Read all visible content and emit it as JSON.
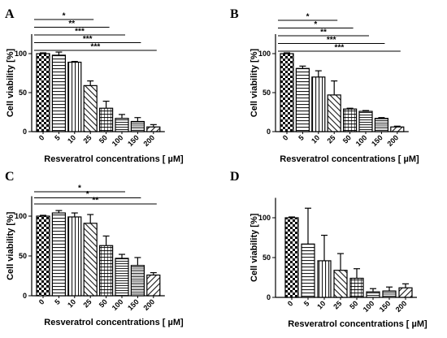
{
  "chart_data": [
    {
      "panel": "A",
      "type": "bar",
      "categories": [
        "0",
        "5",
        "10",
        "25",
        "50",
        "100",
        "150",
        "200"
      ],
      "values": [
        100,
        98,
        89,
        59,
        30,
        17,
        13,
        6
      ],
      "errors": [
        1,
        4,
        1,
        6,
        9,
        5,
        5,
        3
      ],
      "ylabel": "Cell viability [%]",
      "xlabel": "Resveratrol concentrations [ µM]",
      "ylim": [
        0,
        125
      ],
      "yticks": [
        0,
        50,
        100
      ],
      "significance": [
        {
          "label": "*",
          "from": "0",
          "to": "25"
        },
        {
          "label": "**",
          "from": "0",
          "to": "50"
        },
        {
          "label": "***",
          "from": "0",
          "to": "100"
        },
        {
          "label": "***",
          "from": "0",
          "to": "150"
        },
        {
          "label": "***",
          "from": "0",
          "to": "200"
        }
      ]
    },
    {
      "panel": "B",
      "type": "bar",
      "categories": [
        "0",
        "5",
        "10",
        "25",
        "50",
        "100",
        "150",
        "200"
      ],
      "values": [
        100,
        81,
        70,
        47,
        29,
        26,
        17,
        6
      ],
      "errors": [
        1,
        3,
        8,
        18,
        1,
        1,
        1,
        1
      ],
      "ylabel": "Cell viability [%]",
      "xlabel": "Resveratrol concentrations [ µM]",
      "ylim": [
        0,
        125
      ],
      "yticks": [
        0,
        50,
        100
      ],
      "significance": [
        {
          "label": "*",
          "from": "0",
          "to": "25"
        },
        {
          "label": "*",
          "from": "0",
          "to": "50"
        },
        {
          "label": "**",
          "from": "0",
          "to": "100"
        },
        {
          "label": "***",
          "from": "0",
          "to": "150"
        },
        {
          "label": "***",
          "from": "0",
          "to": "200"
        }
      ]
    },
    {
      "panel": "C",
      "type": "bar",
      "categories": [
        "0",
        "5",
        "10",
        "25",
        "50",
        "100",
        "150",
        "200"
      ],
      "values": [
        100,
        104,
        99,
        91,
        63,
        47,
        38,
        26
      ],
      "errors": [
        1,
        3,
        5,
        11,
        12,
        5,
        10,
        3
      ],
      "ylabel": "Cell viability [%]",
      "xlabel": "Resveratrol concentrations [ µM]",
      "ylim": [
        0,
        125
      ],
      "yticks": [
        0,
        50,
        100
      ],
      "significance": [
        {
          "label": "*",
          "from": "0",
          "to": "100"
        },
        {
          "label": "*",
          "from": "0",
          "to": "150"
        },
        {
          "label": "**",
          "from": "0",
          "to": "200"
        }
      ]
    },
    {
      "panel": "D",
      "type": "bar",
      "categories": [
        "0",
        "5",
        "10",
        "25",
        "50",
        "100",
        "150",
        "200"
      ],
      "values": [
        100,
        67,
        46,
        34,
        24,
        7,
        8,
        12
      ],
      "errors": [
        1,
        45,
        32,
        21,
        12,
        4,
        5,
        5
      ],
      "ylabel": "Cell viability [%]",
      "xlabel": "Resveratrol concentrations [ µM]",
      "ylim": [
        0,
        125
      ],
      "yticks": [
        0,
        50,
        100
      ],
      "significance": []
    }
  ]
}
